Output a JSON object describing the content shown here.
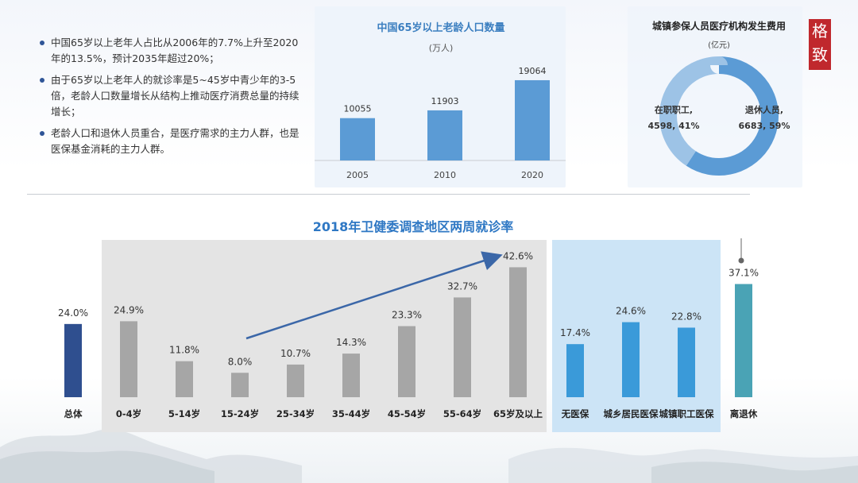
{
  "bullets": [
    "中国65岁以上老年人占比从2006年的7.7%上升至2020年的13.5%，预计2035年超过20%；",
    "由于65岁以上老年人的就诊率是5~45岁中青少年的3-5倍，老龄人口数量增长从结构上推动医疗消费总量的持续增长；",
    "老龄人口和退休人员重合，是医疗需求的主力人群，也是医保基金消耗的主力人群。"
  ],
  "seal": {
    "text": "格致"
  },
  "chart_data": [
    {
      "type": "bar",
      "title": "中国65岁以上老龄人口数量",
      "unit": "(万人)",
      "categories": [
        "2005",
        "2010",
        "2020"
      ],
      "values": [
        10055,
        11903,
        19064
      ],
      "ylim": [
        0,
        20000
      ],
      "color": "#5b9bd5",
      "grid": false
    },
    {
      "type": "pie",
      "title": "城镇参保人员医疗机构发生费用",
      "unit": "(亿元)",
      "labels": [
        "在职职工,",
        "退休人员,"
      ],
      "values": [
        4598,
        6683
      ],
      "value_labels": [
        "4598, 41%",
        "6683, 59%"
      ],
      "colors": [
        "#9dc3e6",
        "#5b9bd5"
      ]
    },
    {
      "type": "bar",
      "title": "2018年卫健委调查地区两周就诊率",
      "categories": [
        "总体",
        "0-4岁",
        "5-14岁",
        "15-24岁",
        "25-34岁",
        "35-44岁",
        "45-54岁",
        "55-64岁",
        "65岁及以上",
        "无医保",
        "城乡居民医保",
        "城镇职工医保",
        "离退休"
      ],
      "values": [
        24.0,
        24.9,
        11.8,
        8.0,
        10.7,
        14.3,
        23.3,
        32.7,
        42.6,
        17.4,
        24.6,
        22.8,
        37.1
      ],
      "value_labels": [
        "24.0%",
        "24.9%",
        "11.8%",
        "8.0%",
        "10.7%",
        "14.3%",
        "23.3%",
        "32.7%",
        "42.6%",
        "17.4%",
        "24.6%",
        "22.8%",
        "37.1%"
      ],
      "colors": [
        "#2f4f8f",
        "#a6a6a6",
        "#a6a6a6",
        "#a6a6a6",
        "#a6a6a6",
        "#a6a6a6",
        "#a6a6a6",
        "#a6a6a6",
        "#a6a6a6",
        "#3a9ad9",
        "#3a9ad9",
        "#3a9ad9",
        "#4aa3b5"
      ],
      "ylim": [
        0,
        50
      ],
      "grid": false,
      "groups": [
        "age",
        "insurance"
      ],
      "trend_arrow": true
    }
  ]
}
